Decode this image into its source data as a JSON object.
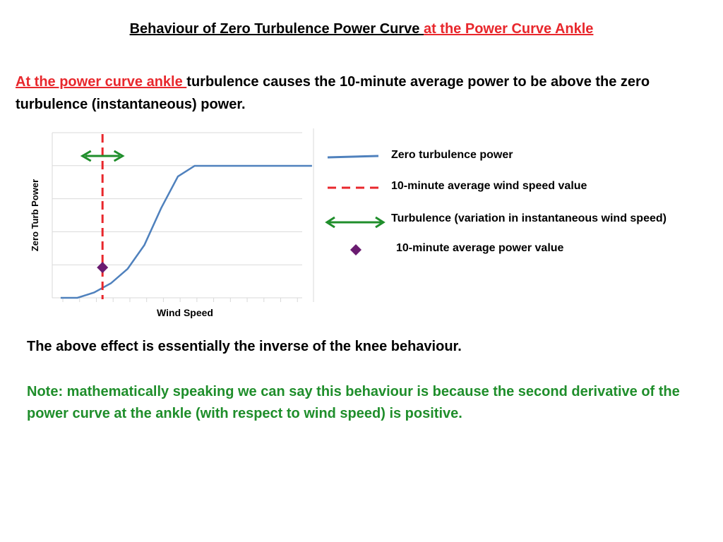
{
  "title": {
    "part1": "Behaviour of Zero Turbulence Power Curve ",
    "part2": "at the Power Curve Ankle"
  },
  "intro": {
    "lead": "At the power curve ankle ",
    "rest": "turbulence causes the 10-minute average power to be above the zero turbulence (instantaneous) power."
  },
  "colors": {
    "curve": "#4f81bd",
    "wind_speed_line": "#e8272c",
    "turbulence_arrow": "#1f8e2b",
    "power_marker": "#6a1b70",
    "gridline": "#d9d9d9"
  },
  "chart_data": {
    "type": "line",
    "xlabel": "Wind Speed",
    "ylabel": "Zero Turb Power",
    "grid": true,
    "series": [
      {
        "name": "Zero turbulence power",
        "x": [
          1,
          2,
          3,
          4,
          5,
          6,
          7,
          8,
          9,
          10,
          11,
          12,
          13,
          14,
          15,
          16
        ],
        "y": [
          0,
          0,
          0.2,
          0.55,
          1.1,
          2.0,
          3.4,
          4.6,
          5.0,
          5.0,
          5.0,
          5.0,
          5.0,
          5.0,
          5.0,
          5.0
        ]
      }
    ],
    "xlim": [
      0.5,
      15.5
    ],
    "ylim": [
      0,
      5
    ],
    "average_wind_speed": 3.5,
    "turbulence_range": [
      2.3,
      4.7
    ],
    "average_power": 1.15
  },
  "legend": [
    {
      "label": "Zero turbulence power",
      "symbol": "line"
    },
    {
      "label": "10-minute average wind speed value",
      "symbol": "dashed-line"
    },
    {
      "label": "Turbulence (variation in instantaneous wind speed)",
      "symbol": "double-arrow"
    },
    {
      "label": "10-minute average power value",
      "symbol": "diamond"
    }
  ],
  "effect_text": "The above effect is essentially the inverse of the knee behaviour.",
  "note_text": "Note: mathematically speaking we can say this behaviour is because the second derivative of the power curve at the ankle (with respect to wind speed) is positive."
}
